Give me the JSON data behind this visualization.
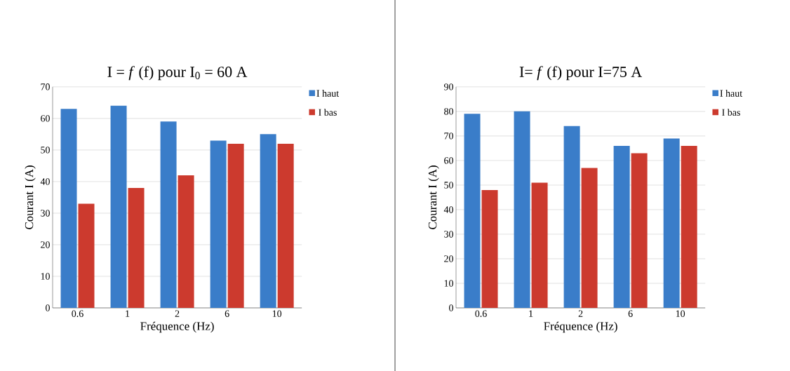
{
  "chart_data": [
    {
      "type": "bar",
      "title": "I = *f* (f) pour I$_{0}$ = 60 A",
      "xlabel": "Fréquence (Hz)",
      "ylabel": "Courant I (A)",
      "categories": [
        "0.6",
        "1",
        "2",
        "6",
        "10"
      ],
      "series": [
        {
          "name": "I haut",
          "color": "#3a7dc9",
          "values": [
            63,
            64,
            59,
            53,
            55
          ]
        },
        {
          "name": "I bas",
          "color": "#cc3a2e",
          "values": [
            33,
            38,
            42,
            52,
            52
          ]
        }
      ],
      "ylim": [
        0,
        70
      ],
      "yticks": [
        0,
        10,
        20,
        30,
        40,
        50,
        60,
        70
      ],
      "grid": "y",
      "legend": "top right"
    },
    {
      "type": "bar",
      "title": "I= *f* (f) pour I=75 A",
      "xlabel": "Fréquence (Hz)",
      "ylabel": "Courant I (A)",
      "categories": [
        "0.6",
        "1",
        "2",
        "6",
        "10"
      ],
      "series": [
        {
          "name": "I haut",
          "color": "#3a7dc9",
          "values": [
            79,
            80,
            74,
            66,
            69
          ]
        },
        {
          "name": "I bas",
          "color": "#cc3a2e",
          "values": [
            48,
            51,
            57,
            63,
            66
          ]
        }
      ],
      "ylim": [
        0,
        90
      ],
      "yticks": [
        0,
        10,
        20,
        30,
        40,
        50,
        60,
        70,
        80,
        90
      ],
      "grid": "y",
      "legend": "top right"
    }
  ]
}
